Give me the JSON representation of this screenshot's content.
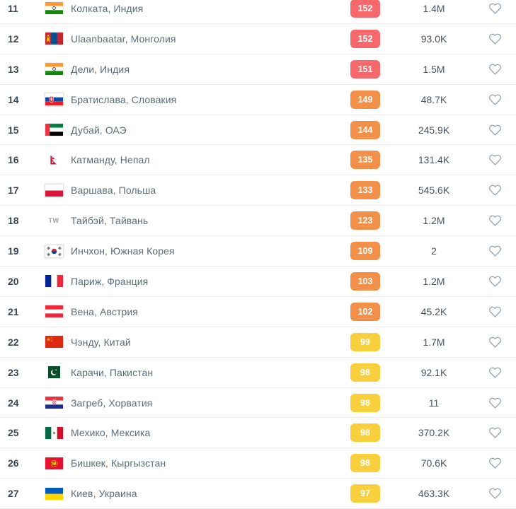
{
  "table": {
    "rows": [
      {
        "rank": "11",
        "flag": "india",
        "city": "Колката, Индия",
        "aqi": "152",
        "aqi_level": "unhealthy",
        "followers": "1.4M"
      },
      {
        "rank": "12",
        "flag": "mongolia",
        "city": "Ulaanbaatar, Монголия",
        "aqi": "152",
        "aqi_level": "unhealthy",
        "followers": "93.0K"
      },
      {
        "rank": "13",
        "flag": "india",
        "city": "Дели, Индия",
        "aqi": "151",
        "aqi_level": "unhealthy",
        "followers": "1.5M"
      },
      {
        "rank": "14",
        "flag": "slovakia",
        "city": "Братислава, Словакия",
        "aqi": "149",
        "aqi_level": "unhealthy_sensitive",
        "followers": "48.7K"
      },
      {
        "rank": "15",
        "flag": "uae",
        "city": "Дубай, ОАЭ",
        "aqi": "144",
        "aqi_level": "unhealthy_sensitive",
        "followers": "245.9K"
      },
      {
        "rank": "16",
        "flag": "nepal",
        "city": "Катманду, Непал",
        "aqi": "135",
        "aqi_level": "unhealthy_sensitive",
        "followers": "131.4K"
      },
      {
        "rank": "17",
        "flag": "poland",
        "city": "Варшава, Польша",
        "aqi": "133",
        "aqi_level": "unhealthy_sensitive",
        "followers": "545.6K"
      },
      {
        "rank": "18",
        "flag": "taiwan",
        "flag_text": "TW",
        "city": "Тайбэй, Тайвань",
        "aqi": "123",
        "aqi_level": "unhealthy_sensitive",
        "followers": "1.2M"
      },
      {
        "rank": "19",
        "flag": "south-korea",
        "city": "Инчхон, Южная Корея",
        "aqi": "109",
        "aqi_level": "unhealthy_sensitive",
        "followers": "2"
      },
      {
        "rank": "20",
        "flag": "france",
        "city": "Париж, Франция",
        "aqi": "103",
        "aqi_level": "unhealthy_sensitive",
        "followers": "1.2M"
      },
      {
        "rank": "21",
        "flag": "austria",
        "city": "Вена, Австрия",
        "aqi": "102",
        "aqi_level": "unhealthy_sensitive",
        "followers": "45.2K"
      },
      {
        "rank": "22",
        "flag": "china",
        "city": "Чэнду, Китай",
        "aqi": "99",
        "aqi_level": "moderate",
        "followers": "1.7M"
      },
      {
        "rank": "23",
        "flag": "pakistan",
        "city": "Карачи, Пакистан",
        "aqi": "98",
        "aqi_level": "moderate",
        "followers": "92.1K"
      },
      {
        "rank": "24",
        "flag": "croatia",
        "city": "Загреб, Хорватия",
        "aqi": "98",
        "aqi_level": "moderate",
        "followers": "11"
      },
      {
        "rank": "25",
        "flag": "mexico",
        "city": "Мехико, Мексика",
        "aqi": "98",
        "aqi_level": "moderate",
        "followers": "370.2K"
      },
      {
        "rank": "26",
        "flag": "kyrgyzstan",
        "city": "Бишкек, Кыргызстан",
        "aqi": "98",
        "aqi_level": "moderate",
        "followers": "70.6K"
      },
      {
        "rank": "27",
        "flag": "ukraine",
        "city": "Киев, Украина",
        "aqi": "97",
        "aqi_level": "moderate",
        "followers": "463.3K"
      }
    ]
  },
  "colors": {
    "aqi_unhealthy": "#f6686c",
    "aqi_unhealthy_sensitive": "#f2904a",
    "aqi_moderate": "#f8cf3d",
    "heart_outline": "#90a1ae",
    "rank_text": "#3c4650",
    "city_text": "#5e6c79",
    "row_separator": "#ebeced"
  },
  "icons": {
    "favorite": "heart-outline-icon"
  }
}
